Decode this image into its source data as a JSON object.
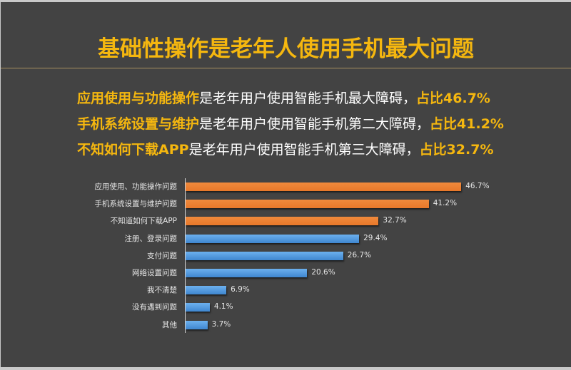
{
  "slide": {
    "title": "基础性操作是老年人使用手机最大问题",
    "points": [
      {
        "highlight": "应用使用与功能操作",
        "text": "是老年用户使用智能手机最大障碍，",
        "pct": "占比46.7%"
      },
      {
        "highlight": "手机系统设置与维护",
        "text": "是老年用户使用智能手机第二大障碍，",
        "pct": "占比41.2%"
      },
      {
        "highlight": "不知如何下载APP",
        "text": "是老年用户使用智能手机第三大障碍，",
        "pct": "占比32.7%"
      }
    ],
    "colors": {
      "title": "#f5b70f",
      "background": "#434343",
      "orange_bar": "#ed7d31",
      "blue_bar": "#5b9bd5"
    }
  },
  "chart_data": {
    "type": "bar",
    "orientation": "horizontal",
    "title": "",
    "xlabel": "",
    "ylabel": "",
    "categories": [
      "应用使用、功能操作问题",
      "手机系统设置与维护问题",
      "不知道如何下载APP",
      "注册、登录问题",
      "支付问题",
      "网络设置问题",
      "我不清楚",
      "没有遇到问题",
      "其他"
    ],
    "values": [
      46.7,
      41.2,
      32.7,
      29.4,
      26.7,
      20.6,
      6.9,
      4.1,
      3.7
    ],
    "labels": [
      "46.7%",
      "41.2%",
      "32.7%",
      "29.4%",
      "26.7%",
      "20.6%",
      "6.9%",
      "4.1%",
      "3.7%"
    ],
    "bar_colors": [
      "#ed7d31",
      "#ed7d31",
      "#ed7d31",
      "#5b9bd5",
      "#5b9bd5",
      "#5b9bd5",
      "#5b9bd5",
      "#5b9bd5",
      "#5b9bd5"
    ],
    "unit": "%",
    "grid": false,
    "legend": false
  }
}
